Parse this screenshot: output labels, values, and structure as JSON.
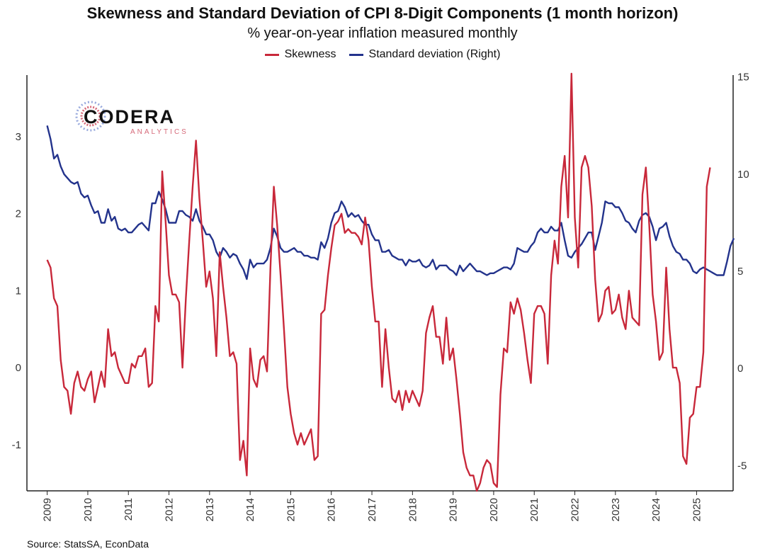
{
  "chart_data": {
    "type": "line",
    "title": "Skewness and Standard Deviation of CPI 8-Digit Components (1 month horizon)",
    "subtitle": "% year-on-year inflation measured monthly",
    "source": "Source: StatsSA, EconData",
    "logo": {
      "name": "CODERA",
      "tagline": "ANALYTICS"
    },
    "x_start": 2009.0,
    "x_step": 0.0833333,
    "xlim": [
      2008.5,
      2025.9
    ],
    "x_ticks": [
      "2009",
      "2010",
      "2011",
      "2012",
      "2013",
      "2014",
      "2015",
      "2016",
      "2017",
      "2018",
      "2019",
      "2020",
      "2021",
      "2022",
      "2023",
      "2024",
      "2025"
    ],
    "y_left": {
      "lim": [
        -1.6,
        3.8
      ],
      "ticks": [
        "-1",
        "0",
        "1",
        "2",
        "3"
      ]
    },
    "y_right": {
      "lim": [
        -6.3,
        15.1
      ],
      "ticks": [
        "-5",
        "0",
        "5",
        "10",
        "15"
      ]
    },
    "legend_position": "top-center",
    "series": [
      {
        "name": "Skewness",
        "axis": "left",
        "color": "#c8283a",
        "values": [
          1.4,
          1.3,
          0.9,
          0.8,
          0.1,
          -0.25,
          -0.3,
          -0.6,
          -0.2,
          -0.05,
          -0.25,
          -0.3,
          -0.15,
          -0.05,
          -0.45,
          -0.25,
          -0.05,
          -0.25,
          0.5,
          0.15,
          0.2,
          0.0,
          -0.1,
          -0.2,
          -0.2,
          0.05,
          0.0,
          0.15,
          0.15,
          0.25,
          -0.25,
          -0.2,
          0.8,
          0.6,
          2.55,
          1.9,
          1.2,
          0.95,
          0.95,
          0.85,
          0.0,
          0.9,
          1.65,
          2.35,
          2.95,
          2.2,
          1.65,
          1.05,
          1.25,
          0.9,
          0.15,
          1.5,
          1.05,
          0.65,
          0.15,
          0.2,
          0.05,
          -1.2,
          -0.95,
          -1.4,
          0.25,
          -0.15,
          -0.25,
          0.1,
          0.15,
          -0.05,
          1.3,
          2.35,
          1.85,
          1.2,
          0.5,
          -0.25,
          -0.6,
          -0.85,
          -1.0,
          -0.85,
          -1.0,
          -0.9,
          -0.8,
          -1.2,
          -1.15,
          0.7,
          0.75,
          1.2,
          1.55,
          1.85,
          1.9,
          2.0,
          1.75,
          1.8,
          1.75,
          1.75,
          1.7,
          1.6,
          1.95,
          1.65,
          1.05,
          0.6,
          0.6,
          -0.25,
          0.5,
          0.0,
          -0.4,
          -0.45,
          -0.3,
          -0.55,
          -0.3,
          -0.45,
          -0.3,
          -0.4,
          -0.5,
          -0.3,
          0.45,
          0.65,
          0.8,
          0.4,
          0.4,
          0.05,
          0.65,
          0.1,
          0.25,
          -0.15,
          -0.6,
          -1.1,
          -1.3,
          -1.4,
          -1.4,
          -1.6,
          -1.5,
          -1.3,
          -1.2,
          -1.25,
          -1.5,
          -1.55,
          -0.35,
          0.25,
          0.2,
          0.85,
          0.7,
          0.9,
          0.75,
          0.45,
          0.1,
          -0.2,
          0.7,
          0.8,
          0.8,
          0.7,
          0.05,
          1.2,
          1.65,
          1.35,
          2.35,
          2.75,
          1.95,
          3.9,
          1.95,
          1.3,
          2.6,
          2.75,
          2.6,
          2.1,
          1.15,
          0.6,
          0.7,
          1.0,
          1.05,
          0.7,
          0.75,
          0.95,
          0.65,
          0.5,
          1.0,
          0.65,
          0.6,
          0.55,
          2.25,
          2.6,
          1.85,
          0.95,
          0.6,
          0.1,
          0.2,
          1.3,
          0.5,
          0.0,
          0.0,
          -0.2,
          -1.15,
          -1.25,
          -0.65,
          -0.6,
          -0.25,
          -0.25,
          0.2,
          2.35,
          2.6
        ]
      },
      {
        "name": "Standard deviation (Right)",
        "axis": "right",
        "color": "#23338c",
        "values": [
          12.5,
          11.8,
          10.8,
          11.0,
          10.4,
          10.0,
          9.8,
          9.6,
          9.5,
          9.6,
          9.0,
          8.8,
          8.9,
          8.4,
          8.0,
          8.1,
          7.5,
          7.5,
          8.2,
          7.6,
          7.8,
          7.2,
          7.1,
          7.2,
          7.0,
          7.0,
          7.2,
          7.4,
          7.5,
          7.3,
          7.1,
          8.5,
          8.5,
          9.1,
          8.7,
          8.2,
          7.5,
          7.5,
          7.5,
          8.1,
          8.1,
          7.9,
          7.8,
          7.6,
          8.2,
          7.6,
          7.3,
          6.9,
          6.9,
          6.6,
          6.0,
          5.7,
          6.2,
          6.0,
          5.7,
          5.9,
          5.8,
          5.4,
          5.1,
          4.6,
          5.6,
          5.2,
          5.4,
          5.4,
          5.4,
          5.6,
          6.2,
          7.2,
          6.8,
          6.2,
          6.0,
          6.0,
          6.1,
          6.2,
          6.0,
          6.0,
          5.8,
          5.8,
          5.7,
          5.7,
          5.6,
          6.5,
          6.2,
          6.7,
          7.5,
          8.0,
          8.1,
          8.6,
          8.3,
          7.8,
          8.0,
          7.8,
          7.9,
          7.6,
          7.4,
          7.4,
          6.9,
          6.6,
          6.6,
          6.0,
          6.0,
          6.1,
          5.8,
          5.7,
          5.6,
          5.6,
          5.3,
          5.6,
          5.5,
          5.5,
          5.6,
          5.3,
          5.2,
          5.3,
          5.6,
          5.1,
          5.3,
          5.3,
          5.3,
          5.1,
          5.0,
          4.8,
          5.3,
          5.0,
          5.2,
          5.4,
          5.2,
          5.0,
          5.0,
          4.9,
          4.8,
          4.9,
          4.9,
          5.0,
          5.1,
          5.2,
          5.2,
          5.1,
          5.4,
          6.2,
          6.1,
          6.0,
          6.0,
          6.3,
          6.5,
          7.0,
          7.2,
          7.0,
          7.0,
          7.3,
          7.1,
          7.1,
          7.5,
          6.6,
          5.8,
          5.7,
          6.0,
          6.2,
          6.4,
          6.7,
          7.0,
          7.0,
          6.1,
          6.8,
          7.5,
          8.6,
          8.5,
          8.5,
          8.3,
          8.3,
          8.0,
          7.6,
          7.5,
          7.2,
          7.0,
          7.6,
          7.9,
          8.0,
          7.8,
          7.3,
          6.6,
          7.2,
          7.3,
          7.5,
          6.8,
          6.3,
          6.0,
          5.9,
          5.6,
          5.6,
          5.4,
          5.0,
          4.9,
          5.1,
          5.2,
          5.1,
          5.0,
          4.9,
          4.8,
          4.8,
          4.8,
          5.5,
          6.3,
          6.7
        ]
      }
    ]
  }
}
